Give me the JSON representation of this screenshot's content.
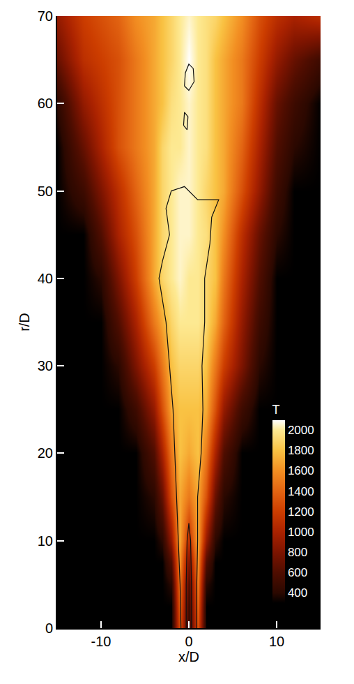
{
  "chart_data": {
    "type": "heatmap",
    "x_label": "x/D",
    "y_label": "r/D",
    "xlim": [
      -15,
      15
    ],
    "xticks": [
      -10,
      0,
      10
    ],
    "ylim": [
      0,
      70
    ],
    "yticks": [
      0,
      10,
      20,
      30,
      40,
      50,
      60,
      70
    ],
    "x": [
      -15,
      -12,
      -10,
      -8,
      -6,
      -4,
      -3,
      -2,
      -1,
      0,
      1,
      2,
      3,
      4,
      6,
      8,
      10,
      12,
      15
    ],
    "y": [
      0,
      2.5,
      5,
      7.5,
      10,
      15,
      20,
      25,
      30,
      35,
      40,
      45,
      50,
      55,
      60,
      65,
      70
    ],
    "values": [
      [
        300,
        300,
        300,
        300,
        300,
        300,
        300,
        300,
        1300,
        450,
        1300,
        300,
        300,
        300,
        300,
        300,
        300,
        300,
        300
      ],
      [
        300,
        300,
        300,
        300,
        300,
        300,
        300,
        300,
        1400,
        500,
        1400,
        300,
        300,
        300,
        300,
        300,
        300,
        300,
        300
      ],
      [
        300,
        300,
        300,
        300,
        300,
        300,
        300,
        400,
        1500,
        600,
        1500,
        400,
        300,
        300,
        300,
        300,
        300,
        300,
        300
      ],
      [
        300,
        300,
        300,
        300,
        300,
        300,
        300,
        600,
        1600,
        800,
        1600,
        600,
        300,
        300,
        300,
        300,
        300,
        300,
        300
      ],
      [
        300,
        300,
        300,
        300,
        300,
        300,
        400,
        900,
        1700,
        1100,
        1700,
        900,
        400,
        300,
        300,
        300,
        300,
        300,
        300
      ],
      [
        300,
        300,
        300,
        300,
        300,
        400,
        700,
        1300,
        1700,
        1500,
        1700,
        1300,
        700,
        400,
        300,
        300,
        300,
        300,
        300
      ],
      [
        300,
        300,
        300,
        300,
        300,
        600,
        1000,
        1500,
        1800,
        1700,
        1800,
        1500,
        1000,
        600,
        300,
        300,
        300,
        300,
        300
      ],
      [
        300,
        300,
        300,
        300,
        500,
        900,
        1300,
        1700,
        1800,
        1800,
        1800,
        1700,
        1300,
        900,
        500,
        300,
        300,
        300,
        300
      ],
      [
        300,
        300,
        300,
        400,
        800,
        1200,
        1500,
        1800,
        1900,
        1900,
        1900,
        1800,
        1500,
        1200,
        800,
        400,
        300,
        300,
        300
      ],
      [
        300,
        300,
        300,
        600,
        1000,
        1500,
        1700,
        1900,
        2000,
        2000,
        2000,
        1900,
        1700,
        1400,
        900,
        500,
        300,
        300,
        300
      ],
      [
        300,
        300,
        400,
        800,
        1200,
        1700,
        1900,
        2000,
        2050,
        2000,
        2000,
        1900,
        1800,
        1500,
        1000,
        600,
        300,
        300,
        300
      ],
      [
        300,
        300,
        600,
        1000,
        1300,
        1700,
        1900,
        2000,
        2050,
        2050,
        2000,
        1950,
        1800,
        1600,
        1100,
        700,
        400,
        300,
        300
      ],
      [
        300,
        500,
        800,
        1100,
        1400,
        1700,
        1900,
        2000,
        2050,
        2050,
        2000,
        1900,
        1800,
        1700,
        1300,
        900,
        500,
        300,
        300
      ],
      [
        300,
        700,
        1000,
        1300,
        1500,
        1700,
        1900,
        2000,
        2000,
        2050,
        2000,
        1950,
        1800,
        1700,
        1400,
        1000,
        600,
        400,
        300
      ],
      [
        400,
        900,
        1100,
        1300,
        1500,
        1700,
        1800,
        1950,
        2000,
        2050,
        2000,
        1950,
        1800,
        1700,
        1500,
        1100,
        700,
        500,
        300
      ],
      [
        700,
        1100,
        1200,
        1300,
        1500,
        1700,
        1800,
        1900,
        2000,
        2100,
        2000,
        1950,
        1800,
        1700,
        1500,
        1200,
        900,
        700,
        500
      ],
      [
        900,
        1200,
        1300,
        1400,
        1600,
        1700,
        1800,
        1900,
        2000,
        2050,
        2000,
        1950,
        1900,
        1800,
        1600,
        1300,
        1100,
        1000,
        1100
      ]
    ],
    "colorbar": {
      "title": "T",
      "range": [
        300,
        2100
      ],
      "ticks": [
        400,
        600,
        800,
        1000,
        1200,
        1400,
        1600,
        1800,
        2000
      ]
    },
    "contour": {
      "x": [
        -0.9,
        -1.0,
        -1.2,
        -1.4,
        -1.6,
        -1.8,
        -2.2,
        -2.6,
        -3.4,
        -3.0,
        -2.2,
        -2.6,
        -2.0,
        -0.5,
        1.0,
        3.4,
        2.6,
        2.4,
        1.8,
        1.8,
        1.5,
        1.6,
        1.4,
        1.0,
        1.0,
        0.9,
        0.9,
        null,
        -0.3,
        -0.3,
        -0.2,
        0,
        0.2,
        0.3,
        0.3,
        null,
        -0.5,
        0,
        0.6,
        0.5,
        0,
        -0.4,
        -0.5,
        null,
        -0.6,
        -0.2,
        -0.1,
        -0.5,
        -0.6
      ],
      "r": [
        0,
        5,
        10,
        15,
        20,
        25,
        30,
        35,
        40,
        42,
        45,
        48,
        50,
        50.5,
        49,
        49,
        47,
        44,
        40,
        35,
        30,
        25,
        20,
        15,
        10,
        5,
        0,
        null,
        0,
        5,
        10,
        12,
        10,
        5,
        0,
        null,
        62,
        61.5,
        62.5,
        64,
        64.5,
        63.5,
        62,
        null,
        57.5,
        57,
        58.5,
        59,
        57.5
      ]
    }
  }
}
